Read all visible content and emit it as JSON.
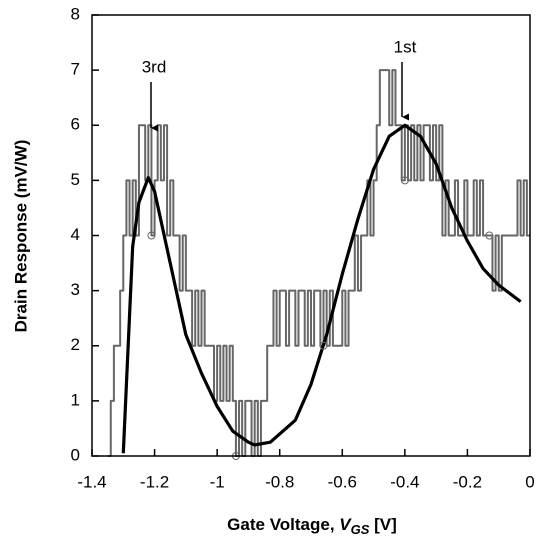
{
  "chart_data": {
    "type": "line",
    "y_label": "Drain Response (mV/W)",
    "x_label": [
      "Gate Voltage, ",
      "V",
      "GS",
      " [V]"
    ],
    "xlim": [
      -1.4,
      0
    ],
    "ylim": [
      0,
      8
    ],
    "xticks": [
      -1.4,
      -1.2,
      -1,
      -0.8,
      -0.6,
      -0.4,
      -0.2,
      0
    ],
    "yticks": [
      0,
      1,
      2,
      3,
      4,
      5,
      6,
      7,
      8
    ],
    "annotations": [
      {
        "text": "3rd"
      },
      {
        "text": "1st"
      }
    ],
    "series": [
      {
        "color": "#666666",
        "style": "step",
        "x": [
          -1.35,
          -1.34,
          -1.33,
          -1.32,
          -1.31,
          -1.3,
          -1.29,
          -1.28,
          -1.27,
          -1.26,
          -1.25,
          -1.24,
          -1.23,
          -1.22,
          -1.21,
          -1.2,
          -1.19,
          -1.18,
          -1.17,
          -1.16,
          -1.15,
          -1.14,
          -1.13,
          -1.12,
          -1.11,
          -1.1,
          -1.09,
          -1.08,
          -1.07,
          -1.06,
          -1.05,
          -1.04,
          -1.03,
          -1.02,
          -1.01,
          -1.0,
          -0.99,
          -0.98,
          -0.97,
          -0.96,
          -0.95,
          -0.94,
          -0.93,
          -0.92,
          -0.91,
          -0.9,
          -0.89,
          -0.88,
          -0.87,
          -0.86,
          -0.85,
          -0.84,
          -0.83,
          -0.82,
          -0.81,
          -0.8,
          -0.79,
          -0.78,
          -0.77,
          -0.76,
          -0.75,
          -0.74,
          -0.73,
          -0.72,
          -0.71,
          -0.7,
          -0.69,
          -0.68,
          -0.67,
          -0.66,
          -0.65,
          -0.64,
          -0.63,
          -0.62,
          -0.61,
          -0.6,
          -0.59,
          -0.58,
          -0.57,
          -0.56,
          -0.55,
          -0.54,
          -0.53,
          -0.52,
          -0.51,
          -0.5,
          -0.49,
          -0.48,
          -0.47,
          -0.46,
          -0.45,
          -0.44,
          -0.43,
          -0.42,
          -0.41,
          -0.4,
          -0.39,
          -0.38,
          -0.37,
          -0.36,
          -0.35,
          -0.34,
          -0.33,
          -0.32,
          -0.31,
          -0.3,
          -0.29,
          -0.28,
          -0.27,
          -0.26,
          -0.25,
          -0.24,
          -0.23,
          -0.22,
          -0.21,
          -0.2,
          -0.19,
          -0.18,
          -0.17,
          -0.16,
          -0.15,
          -0.14,
          -0.13,
          -0.12,
          -0.11,
          -0.1,
          -0.09,
          -0.08,
          -0.07,
          -0.06,
          -0.05,
          -0.04,
          -0.03,
          -0.02,
          -0.01,
          0.0
        ],
        "values": [
          0,
          1,
          2,
          2,
          3,
          4,
          5,
          4,
          5,
          4,
          6,
          6,
          5,
          6,
          4,
          5,
          6,
          5,
          6,
          4,
          5,
          4,
          4,
          3,
          4,
          3,
          3,
          2,
          3,
          2,
          3,
          2,
          2,
          2,
          1,
          2,
          1,
          2,
          1,
          2,
          1,
          0,
          1,
          0,
          1,
          1,
          0,
          1,
          0,
          1,
          1,
          2,
          2,
          3,
          2,
          3,
          3,
          2,
          3,
          3,
          2,
          3,
          3,
          2,
          3,
          2,
          3,
          3,
          2,
          3,
          2,
          3,
          2,
          2,
          2,
          3,
          2,
          3,
          3,
          4,
          3,
          4,
          4,
          5,
          4,
          5,
          6,
          7,
          7,
          7,
          6,
          7,
          6,
          6,
          5,
          6,
          5,
          6,
          5,
          6,
          5,
          6,
          6,
          5,
          6,
          5,
          6,
          4,
          5,
          4,
          4,
          5,
          4,
          4,
          5,
          4,
          4,
          5,
          4,
          5,
          4,
          4,
          4,
          3,
          4,
          3,
          4,
          4,
          4,
          4,
          4,
          5,
          4,
          5,
          4,
          4
        ]
      },
      {
        "color": "#000000",
        "style": "smooth",
        "x": [
          -1.3,
          -1.27,
          -1.25,
          -1.22,
          -1.2,
          -1.15,
          -1.1,
          -1.05,
          -1.0,
          -0.95,
          -0.9,
          -0.88,
          -0.83,
          -0.75,
          -0.7,
          -0.65,
          -0.6,
          -0.55,
          -0.5,
          -0.45,
          -0.4,
          -0.35,
          -0.3,
          -0.25,
          -0.2,
          -0.15,
          -0.1,
          -0.03
        ],
        "values": [
          0.05,
          3.8,
          4.6,
          5.05,
          4.8,
          3.5,
          2.2,
          1.5,
          0.9,
          0.45,
          0.25,
          0.2,
          0.25,
          0.65,
          1.3,
          2.2,
          3.3,
          4.3,
          5.2,
          5.8,
          6.0,
          5.8,
          5.3,
          4.5,
          3.9,
          3.4,
          3.1,
          2.8
        ]
      },
      {
        "color": "#666666",
        "style": "markers",
        "x": [
          -1.21,
          -0.94,
          -0.66,
          -0.4,
          -0.13
        ],
        "values": [
          4,
          0,
          2,
          5,
          4
        ]
      }
    ]
  }
}
